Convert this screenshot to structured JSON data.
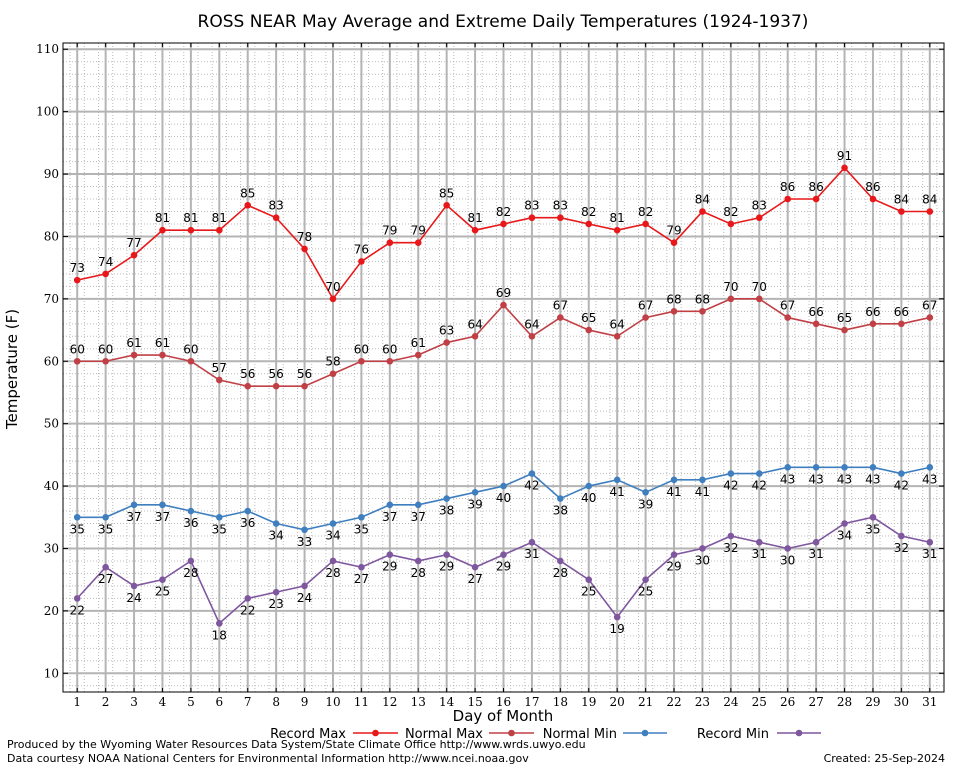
{
  "chart_data": {
    "type": "line",
    "title": "ROSS NEAR May Average and Extreme Daily Temperatures (1924-1937)",
    "xlabel": "Day of Month",
    "ylabel": "Temperature (F)",
    "x": [
      1,
      2,
      3,
      4,
      5,
      6,
      7,
      8,
      9,
      10,
      11,
      12,
      13,
      14,
      15,
      16,
      17,
      18,
      19,
      20,
      21,
      22,
      23,
      24,
      25,
      26,
      27,
      28,
      29,
      30,
      31
    ],
    "ylim": [
      7,
      111
    ],
    "yticks": [
      10,
      20,
      30,
      40,
      50,
      60,
      70,
      80,
      90,
      100,
      110
    ],
    "grid": true,
    "legend_position": "bottom",
    "series": [
      {
        "name": "Record Max",
        "color": "#e8181a",
        "label_position": "above",
        "values": [
          73,
          74,
          77,
          81,
          81,
          81,
          85,
          83,
          78,
          70,
          76,
          79,
          79,
          85,
          81,
          82,
          83,
          83,
          82,
          81,
          82,
          79,
          84,
          82,
          83,
          86,
          86,
          91,
          86,
          84,
          84
        ]
      },
      {
        "name": "Normal Max",
        "color": "#c04046",
        "label_position": "above",
        "values": [
          60,
          60,
          61,
          61,
          60,
          57,
          56,
          56,
          56,
          58,
          60,
          60,
          61,
          63,
          64,
          69,
          64,
          67,
          65,
          64,
          67,
          68,
          68,
          70,
          70,
          67,
          66,
          65,
          66,
          66,
          67
        ]
      },
      {
        "name": "Normal Min",
        "color": "#3f7fbf",
        "label_position": "below",
        "values": [
          35,
          35,
          37,
          37,
          36,
          35,
          36,
          34,
          33,
          34,
          35,
          37,
          37,
          38,
          39,
          40,
          42,
          38,
          40,
          41,
          39,
          41,
          41,
          42,
          42,
          43,
          43,
          43,
          43,
          42,
          43
        ]
      },
      {
        "name": "Record Min",
        "color": "#7f579f",
        "label_position": "below",
        "values": [
          22,
          27,
          24,
          25,
          28,
          18,
          22,
          23,
          24,
          28,
          27,
          29,
          28,
          29,
          27,
          29,
          31,
          28,
          25,
          19,
          25,
          29,
          30,
          32,
          31,
          30,
          31,
          34,
          35,
          32,
          31
        ]
      }
    ]
  },
  "footer": {
    "produced_by": "Produced by the Wyoming Water Resources Data System/State Climate Office http://www.wrds.uwyo.edu",
    "data_courtesy": "Data courtesy NOAA National Centers for Environmental Information http://www.ncei.noaa.gov",
    "created": "Created: 25-Sep-2024"
  }
}
